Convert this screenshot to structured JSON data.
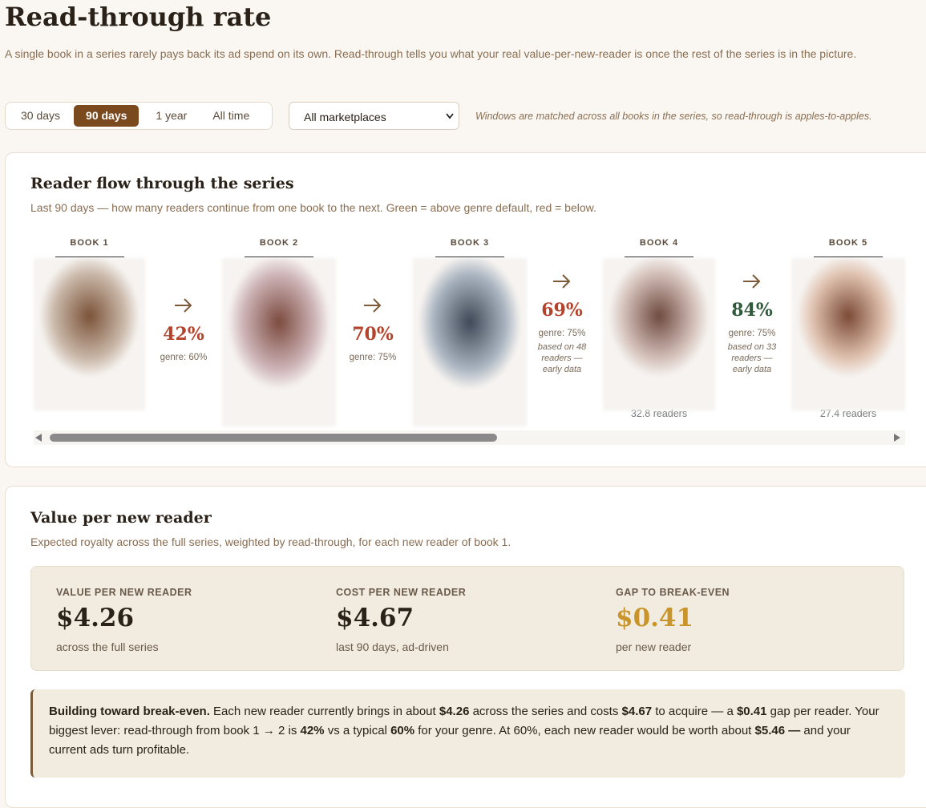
{
  "header": {
    "title": "Read-through rate",
    "subtitle": "A single book in a series rarely pays back its ad spend on its own. Read-through tells you what your real value-per-new-reader is once the rest of the series is in the picture."
  },
  "controls": {
    "ranges": [
      {
        "label": "30 days",
        "selected": false
      },
      {
        "label": "90 days",
        "selected": true
      },
      {
        "label": "1 year",
        "selected": false
      },
      {
        "label": "All time",
        "selected": false
      }
    ],
    "marketplace": "All marketplaces",
    "note": "Windows are matched across all books in the series, so read-through is apples-to-apples."
  },
  "flow": {
    "title": "Reader flow through the series",
    "subtitle": "Last 90 days — how many readers continue from one book to the next. Green = above genre default, red = below.",
    "books": [
      {
        "label": "BOOK 1"
      },
      {
        "label": "BOOK 2"
      },
      {
        "label": "BOOK 3"
      },
      {
        "label": "BOOK 4",
        "readers": "32.8 readers"
      },
      {
        "label": "BOOK 5",
        "readers": "27.4 readers"
      }
    ],
    "transitions": [
      {
        "rate": "42%",
        "genre": "genre: 60%",
        "status": "below"
      },
      {
        "rate": "70%",
        "genre": "genre: 75%",
        "status": "below"
      },
      {
        "rate": "69%",
        "genre": "genre: 75%",
        "note": "based on 48 readers — early data",
        "status": "below"
      },
      {
        "rate": "84%",
        "genre": "genre: 75%",
        "note": "based on 33 readers — early data",
        "status": "above"
      }
    ]
  },
  "value": {
    "title": "Value per new reader",
    "subtitle": "Expected royalty across the full series, weighted by read-through, for each new reader of book 1.",
    "stats": [
      {
        "label": "VALUE PER NEW READER",
        "value": "$4.26",
        "note": "across the full series",
        "highlight": false
      },
      {
        "label": "COST PER NEW READER",
        "value": "$4.67",
        "note": "last 90 days, ad-driven",
        "highlight": false
      },
      {
        "label": "GAP TO BREAK-EVEN",
        "value": "$0.41",
        "note": "per new reader",
        "highlight": true
      }
    ],
    "callout": [
      {
        "text": "Building toward break-even.",
        "bold": true
      },
      {
        "text": " Each new reader currently brings in about ",
        "bold": false
      },
      {
        "text": "$4.26",
        "bold": true
      },
      {
        "text": " across the series and costs ",
        "bold": false
      },
      {
        "text": "$4.67",
        "bold": true
      },
      {
        "text": " to acquire — a ",
        "bold": false
      },
      {
        "text": "$0.41",
        "bold": true
      },
      {
        "text": " gap per reader. Your biggest lever: read-through from book 1 → 2 is ",
        "bold": false
      },
      {
        "text": "42%",
        "bold": true
      },
      {
        "text": " vs a typical ",
        "bold": false
      },
      {
        "text": "60%",
        "bold": true
      },
      {
        "text": " for your genre. At 60%, each new reader would be worth about ",
        "bold": false
      },
      {
        "text": "$5.46 —",
        "bold": true
      },
      {
        "text": " and your current ads turn profitable.",
        "bold": false
      }
    ]
  }
}
